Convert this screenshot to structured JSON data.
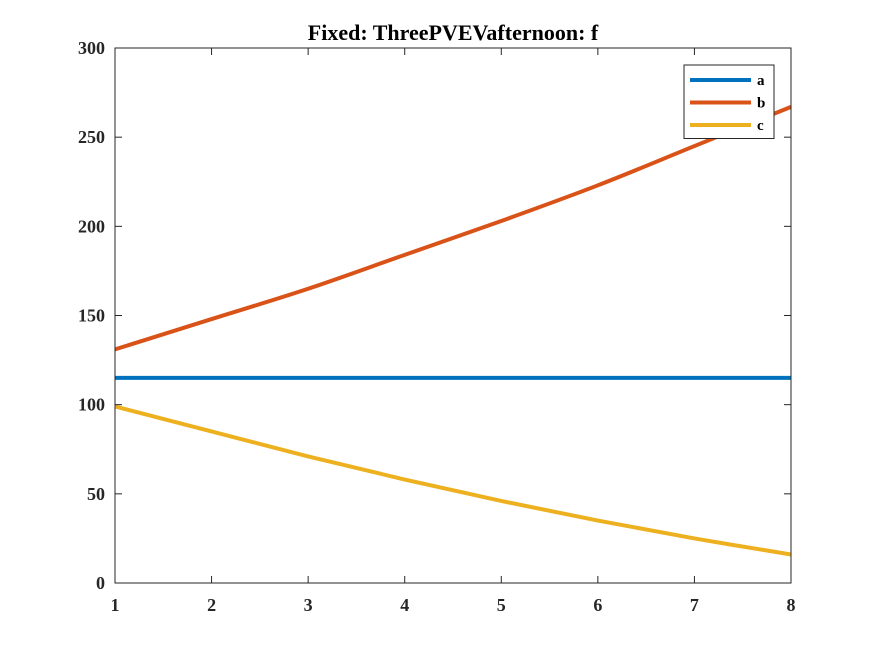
{
  "chart_data": {
    "type": "line",
    "title": "Fixed: ThreePVEVafternoon: f",
    "xlabel": "",
    "ylabel": "",
    "xlim": [
      1,
      8
    ],
    "ylim": [
      0,
      300
    ],
    "xticks": [
      "1",
      "2",
      "3",
      "4",
      "5",
      "6",
      "7",
      "8"
    ],
    "yticks": [
      "0",
      "50",
      "100",
      "150",
      "200",
      "250",
      "300"
    ],
    "x": [
      1,
      2,
      3,
      4,
      5,
      6,
      7,
      8
    ],
    "series": [
      {
        "name": "a",
        "color": "#0072BD",
        "values": [
          115,
          115,
          115,
          115,
          115,
          115,
          115,
          115
        ]
      },
      {
        "name": "b",
        "color": "#D95319",
        "values": [
          131,
          148,
          165,
          184,
          203,
          223,
          245,
          267
        ]
      },
      {
        "name": "c",
        "color": "#EDB120",
        "values": [
          99,
          85,
          71,
          58,
          46,
          35,
          25,
          16
        ]
      }
    ],
    "grid": false,
    "legend_position": "top-right"
  }
}
